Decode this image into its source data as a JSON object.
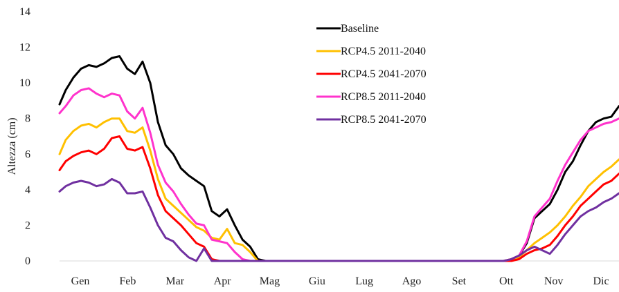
{
  "chart_data": {
    "type": "line",
    "title": "",
    "xlabel": "",
    "ylabel": "Altezza (cm)",
    "ylim": [
      0,
      14
    ],
    "yticks": [
      0,
      2,
      4,
      6,
      8,
      10,
      12,
      14
    ],
    "grid": false,
    "legend_position": "top-center",
    "categories": [
      "Gen",
      "Feb",
      "Mar",
      "Apr",
      "Mag",
      "Giu",
      "Lug",
      "Ago",
      "Set",
      "Ott",
      "Nov",
      "Dic"
    ],
    "x": [
      1,
      5,
      10,
      15,
      20,
      25,
      30,
      35,
      40,
      45,
      50,
      55,
      60,
      65,
      70,
      75,
      80,
      85,
      90,
      95,
      100,
      105,
      110,
      115,
      120,
      125,
      130,
      135,
      140,
      145,
      150,
      155,
      160,
      180,
      200,
      220,
      240,
      260,
      280,
      290,
      295,
      300,
      305,
      310,
      315,
      320,
      325,
      330,
      335,
      340,
      345,
      350,
      355,
      360,
      365
    ],
    "series": [
      {
        "name": "Baseline",
        "color": "#000000",
        "values": [
          8.8,
          9.6,
          10.3,
          10.8,
          11.0,
          10.9,
          11.1,
          11.4,
          11.5,
          10.8,
          10.5,
          11.2,
          10.0,
          7.8,
          6.5,
          6.0,
          5.2,
          4.8,
          4.5,
          4.2,
          2.8,
          2.5,
          2.9,
          2.0,
          1.2,
          0.8,
          0.1,
          0.0,
          0.0,
          0.0,
          0.0,
          0.0,
          0.0,
          0.0,
          0.0,
          0.0,
          0.0,
          0.0,
          0.0,
          0.0,
          0.1,
          0.3,
          1.0,
          2.4,
          2.8,
          3.2,
          4.0,
          5.0,
          5.6,
          6.5,
          7.3,
          7.8,
          8.0,
          8.1,
          8.7
        ]
      },
      {
        "name": "RCP4.5 2011-2040",
        "color": "#ffc000",
        "values": [
          6.0,
          6.8,
          7.3,
          7.6,
          7.7,
          7.5,
          7.8,
          8.0,
          8.0,
          7.3,
          7.2,
          7.5,
          6.2,
          4.6,
          3.5,
          3.1,
          2.7,
          2.3,
          1.9,
          1.7,
          1.3,
          1.2,
          1.8,
          1.0,
          0.9,
          0.5,
          0.0,
          0.0,
          0.0,
          0.0,
          0.0,
          0.0,
          0.0,
          0.0,
          0.0,
          0.0,
          0.0,
          0.0,
          0.0,
          0.0,
          0.1,
          0.2,
          0.6,
          1.0,
          1.3,
          1.6,
          2.0,
          2.5,
          3.1,
          3.6,
          4.2,
          4.6,
          5.0,
          5.3,
          5.7
        ]
      },
      {
        "name": "RCP4.5 2041-2070",
        "color": "#ff0000",
        "values": [
          5.1,
          5.6,
          5.9,
          6.1,
          6.2,
          6.0,
          6.3,
          6.9,
          7.0,
          6.3,
          6.2,
          6.4,
          5.2,
          3.7,
          2.8,
          2.4,
          2.0,
          1.5,
          1.0,
          0.8,
          0.1,
          0.0,
          0.0,
          0.0,
          0.0,
          0.0,
          0.0,
          0.0,
          0.0,
          0.0,
          0.0,
          0.0,
          0.0,
          0.0,
          0.0,
          0.0,
          0.0,
          0.0,
          0.0,
          0.0,
          0.0,
          0.1,
          0.4,
          0.6,
          0.7,
          0.9,
          1.4,
          2.0,
          2.5,
          3.1,
          3.5,
          3.9,
          4.3,
          4.5,
          4.9
        ]
      },
      {
        "name": "RCP8.5 2011-2040",
        "color": "#ff33cc",
        "values": [
          8.3,
          8.7,
          9.3,
          9.6,
          9.7,
          9.4,
          9.2,
          9.4,
          9.3,
          8.4,
          8.0,
          8.6,
          7.2,
          5.4,
          4.4,
          3.9,
          3.2,
          2.6,
          2.1,
          2.0,
          1.2,
          1.1,
          1.0,
          0.5,
          0.1,
          0.0,
          0.0,
          0.0,
          0.0,
          0.0,
          0.0,
          0.0,
          0.0,
          0.0,
          0.0,
          0.0,
          0.0,
          0.0,
          0.0,
          0.0,
          0.1,
          0.3,
          1.1,
          2.5,
          3.0,
          3.5,
          4.5,
          5.4,
          6.1,
          6.8,
          7.3,
          7.5,
          7.7,
          7.8,
          8.0
        ]
      },
      {
        "name": "RCP8.5 2041-2070",
        "color": "#7030a0",
        "values": [
          3.9,
          4.2,
          4.4,
          4.5,
          4.4,
          4.2,
          4.3,
          4.6,
          4.4,
          3.8,
          3.8,
          3.9,
          3.0,
          2.0,
          1.3,
          1.1,
          0.6,
          0.2,
          0.0,
          0.7,
          0.0,
          0.0,
          0.0,
          0.0,
          0.0,
          0.0,
          0.0,
          0.0,
          0.0,
          0.0,
          0.0,
          0.0,
          0.0,
          0.0,
          0.0,
          0.0,
          0.0,
          0.0,
          0.0,
          0.0,
          0.1,
          0.3,
          0.6,
          0.8,
          0.6,
          0.4,
          0.9,
          1.5,
          2.0,
          2.5,
          2.8,
          3.0,
          3.3,
          3.5,
          3.8
        ]
      }
    ]
  }
}
